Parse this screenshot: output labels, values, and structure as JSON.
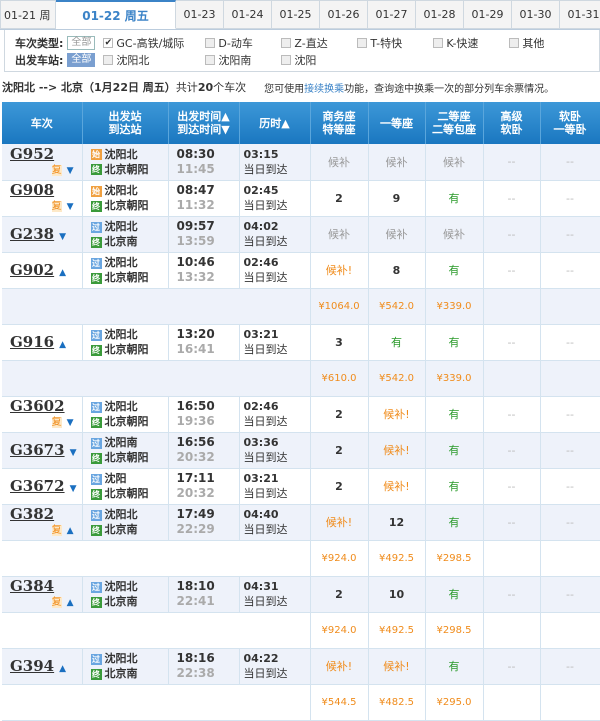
{
  "date_tabs": [
    "01-21 周",
    "01-22 周五",
    "01-23",
    "01-24",
    "01-25",
    "01-26",
    "01-27",
    "01-28",
    "01-29",
    "01-30",
    "01-31"
  ],
  "active_tab": 1,
  "filter": {
    "type_label": "车次类型:",
    "all": "全部",
    "types": [
      {
        "label": "GC-高铁/城际",
        "checked": true
      },
      {
        "label": "D-动车",
        "checked": false
      },
      {
        "label": "Z-直达",
        "checked": false
      },
      {
        "label": "T-特快",
        "checked": false
      },
      {
        "label": "K-快速",
        "checked": false
      },
      {
        "label": "其他",
        "checked": false
      }
    ],
    "station_label": "出发车站:",
    "stations": [
      {
        "label": "沈阳北"
      },
      {
        "label": "沈阳南"
      },
      {
        "label": "沈阳"
      }
    ]
  },
  "info": {
    "route": "沈阳北 --> 北京（1月22日  周五）",
    "count_prefix": "共计",
    "count": "20",
    "count_suffix": "个车次",
    "tip_pre": "您可使用",
    "tip_link": "接续换乘",
    "tip_post": "功能，查询途中换乘一次的部分列车余票情况。"
  },
  "headers": {
    "train": "车次",
    "station1": "出发站",
    "station2": "到达站",
    "time1": "出发时间▲",
    "time2": "到达时间▼",
    "duration": "历时▲",
    "c1a": "商务座",
    "c1b": "特等座",
    "c2": "一等座",
    "c3a": "二等座",
    "c3b": "二等包座",
    "c4a": "高级",
    "c4b": "软卧",
    "c5a": "软卧",
    "c5b": "一等卧"
  },
  "badges": {
    "start": "始",
    "pass": "过",
    "end": "终",
    "fu": "复"
  },
  "arrival_note": "当日到达",
  "trains": [
    {
      "no": "G952",
      "fu": true,
      "arrow": "▼",
      "from": "沈阳北",
      "from_type": "start",
      "to": "北京朝阳",
      "dep": "08:30",
      "arr": "11:45",
      "dur": "03:15",
      "seats": [
        "候补",
        "候补",
        "候补",
        "--",
        "--"
      ],
      "prices": null
    },
    {
      "no": "G908",
      "fu": true,
      "arrow": "▼",
      "from": "沈阳北",
      "from_type": "start",
      "to": "北京朝阳",
      "dep": "08:47",
      "arr": "11:32",
      "dur": "02:45",
      "seats": [
        "2",
        "9",
        "有",
        "--",
        "--"
      ],
      "prices": null
    },
    {
      "no": "G238",
      "fu": false,
      "arrow": "▼",
      "from": "沈阳北",
      "from_type": "pass",
      "to": "北京南",
      "dep": "09:57",
      "arr": "13:59",
      "dur": "04:02",
      "seats": [
        "候补",
        "候补",
        "候补",
        "--",
        "--"
      ],
      "prices": null
    },
    {
      "no": "G902",
      "fu": false,
      "arrow": "▲",
      "from": "沈阳北",
      "from_type": "pass",
      "to": "北京朝阳",
      "dep": "10:46",
      "arr": "13:32",
      "dur": "02:46",
      "seats": [
        "候补!",
        "8",
        "有",
        "--",
        "--"
      ],
      "prices": [
        "¥1064.0",
        "¥542.0",
        "¥339.0"
      ]
    },
    {
      "no": "G916",
      "fu": false,
      "arrow": "▲",
      "from": "沈阳北",
      "from_type": "pass",
      "to": "北京朝阳",
      "dep": "13:20",
      "arr": "16:41",
      "dur": "03:21",
      "seats": [
        "3",
        "有",
        "有",
        "--",
        "--"
      ],
      "prices": [
        "¥610.0",
        "¥542.0",
        "¥339.0"
      ]
    },
    {
      "no": "G3602",
      "fu": true,
      "arrow": "▼",
      "from": "沈阳北",
      "from_type": "pass",
      "to": "北京朝阳",
      "dep": "16:50",
      "arr": "19:36",
      "dur": "02:46",
      "seats": [
        "2",
        "候补!",
        "有",
        "--",
        "--"
      ],
      "prices": null
    },
    {
      "no": "G3673",
      "fu": false,
      "arrow": "▼",
      "from": "沈阳南",
      "from_type": "pass",
      "to": "北京朝阳",
      "dep": "16:56",
      "arr": "20:32",
      "dur": "03:36",
      "seats": [
        "2",
        "候补!",
        "有",
        "--",
        "--"
      ],
      "prices": null
    },
    {
      "no": "G3672",
      "fu": false,
      "arrow": "▼",
      "from": "沈阳",
      "from_type": "pass",
      "to": "北京朝阳",
      "dep": "17:11",
      "arr": "20:32",
      "dur": "03:21",
      "seats": [
        "2",
        "候补!",
        "有",
        "--",
        "--"
      ],
      "prices": null
    },
    {
      "no": "G382",
      "fu": true,
      "arrow": "▲",
      "from": "沈阳北",
      "from_type": "pass",
      "to": "北京南",
      "dep": "17:49",
      "arr": "22:29",
      "dur": "04:40",
      "seats": [
        "候补!",
        "12",
        "有",
        "--",
        "--"
      ],
      "prices": [
        "¥924.0",
        "¥492.5",
        "¥298.5"
      ]
    },
    {
      "no": "G384",
      "fu": true,
      "arrow": "▲",
      "from": "沈阳北",
      "from_type": "pass",
      "to": "北京南",
      "dep": "18:10",
      "arr": "22:41",
      "dur": "04:31",
      "seats": [
        "2",
        "10",
        "有",
        "--",
        "--"
      ],
      "prices": [
        "¥924.0",
        "¥492.5",
        "¥298.5"
      ]
    },
    {
      "no": "G394",
      "fu": false,
      "arrow": "▲",
      "from": "沈阳北",
      "from_type": "pass",
      "to": "北京南",
      "dep": "18:16",
      "arr": "22:38",
      "dur": "04:22",
      "seats": [
        "候补!",
        "候补!",
        "有",
        "--",
        "--"
      ],
      "prices": [
        "¥544.5",
        "¥482.5",
        "¥295.0"
      ]
    }
  ],
  "colors": {
    "header": "#1a77c0",
    "link": "#3b83c7",
    "available": "#2a9a2a",
    "waitlist": "#f08c1c",
    "price": "#f08c1c"
  }
}
